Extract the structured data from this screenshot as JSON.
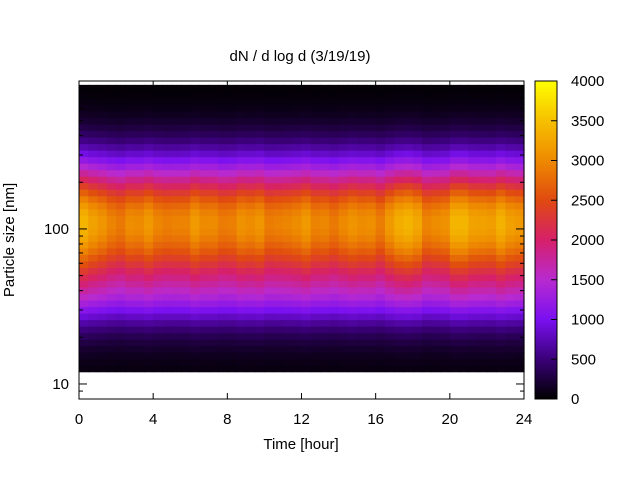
{
  "chart_data": {
    "type": "heatmap",
    "title": "dN / d log d (3/19/19)",
    "xlabel": "Time [hour]",
    "ylabel": "Particle size [nm]",
    "xlim": [
      0,
      24
    ],
    "x_ticks": [
      0,
      4,
      8,
      12,
      16,
      20,
      24
    ],
    "y_scale": "log",
    "ylim_nm": [
      8,
      900
    ],
    "y_ticks": [
      10,
      100
    ],
    "colorbar": {
      "range": [
        0,
        4000
      ],
      "ticks": [
        0,
        500,
        1000,
        1500,
        2000,
        2500,
        3000,
        3500,
        4000
      ],
      "colormap": "gnuplot-hot (black-purple-red-orange-yellow)"
    },
    "data_summary": {
      "peak_size_nm": 110,
      "peak_value_range": [
        2600,
        3400
      ],
      "lower_size_limit_nm": 12,
      "upper_size_limit_nm": 850,
      "bright_periods_hour": [
        0,
        17.5,
        20.5,
        22.5
      ]
    }
  }
}
